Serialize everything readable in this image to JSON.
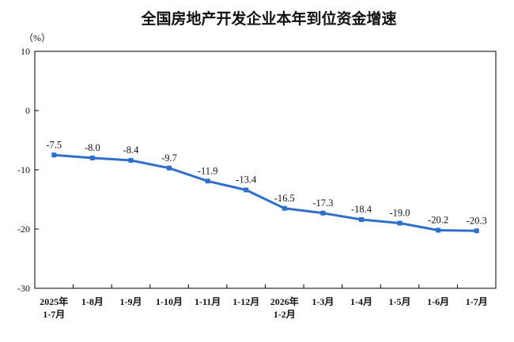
{
  "chart_data": {
    "type": "line",
    "title": "全国房地产开发企业本年到位资金增速",
    "unit": "（%）",
    "ylim": [
      -30,
      10
    ],
    "yticks": [
      10,
      0,
      -10,
      -20,
      -30
    ],
    "grid": false,
    "categories": [
      [
        "2025年",
        "1-7月"
      ],
      [
        "1-8月"
      ],
      [
        "1-9月"
      ],
      [
        "1-10月"
      ],
      [
        "1-11月"
      ],
      [
        "1-12月"
      ],
      [
        "2026年",
        "1-2月"
      ],
      [
        "1-3月"
      ],
      [
        "1-4月"
      ],
      [
        "1-5月"
      ],
      [
        "1-6月"
      ],
      [
        "1-7月"
      ]
    ],
    "series": [
      {
        "values": [
          -7.5,
          -8.0,
          -8.4,
          -9.7,
          -11.9,
          -13.4,
          -16.5,
          -17.3,
          -18.4,
          -19.0,
          -20.2,
          -20.3
        ],
        "labels": [
          "-7.5",
          "-8.0",
          "-8.4",
          "-9.7",
          "-11.9",
          "-13.4",
          "-16.5",
          "-17.3",
          "-18.4",
          "-19.0",
          "-20.2",
          "-20.3"
        ]
      }
    ],
    "colors": {
      "line": "#2e6fcb",
      "marker": "#2e6fcb",
      "axis": "#000000"
    }
  }
}
